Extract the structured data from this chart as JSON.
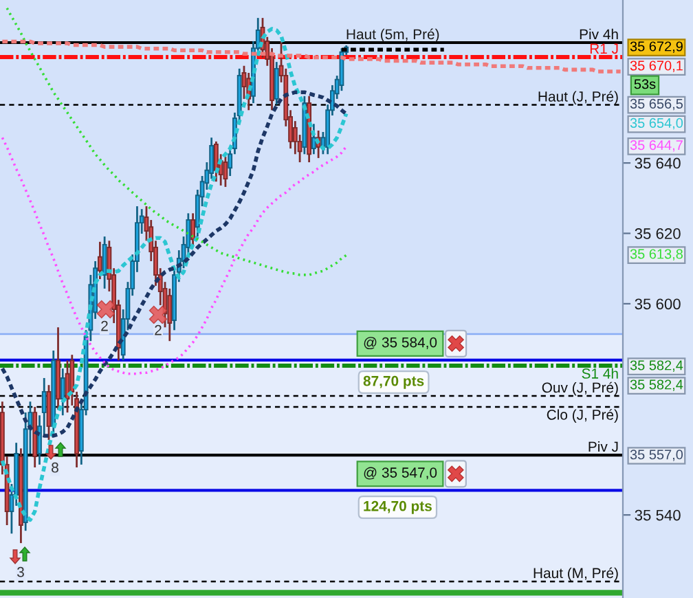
{
  "chart_data": {
    "type": "candlestick",
    "categories": [
      null,
      null,
      null,
      null,
      null,
      null,
      null,
      null,
      null,
      null,
      null,
      null,
      null,
      null,
      null,
      null,
      null,
      null,
      null,
      null,
      null,
      null,
      null,
      null,
      null,
      null,
      null,
      null,
      null,
      null,
      null,
      null,
      null,
      null,
      null,
      null,
      null,
      null,
      null,
      null,
      null,
      null,
      null,
      null,
      null,
      null,
      null,
      null,
      null,
      null,
      null,
      null,
      null,
      null,
      null,
      null,
      null,
      null,
      null,
      null,
      null,
      null,
      null,
      null,
      null,
      null,
      null,
      null,
      null,
      null,
      null,
      null,
      null,
      null,
      null,
      null,
      null,
      null,
      null,
      null,
      null,
      null,
      null,
      null,
      null,
      null,
      null,
      null,
      null,
      null,
      null,
      null,
      null,
      null,
      null,
      null,
      null,
      null,
      null,
      null,
      null,
      null,
      null,
      null,
      null,
      null,
      null,
      null,
      null,
      null,
      null,
      null,
      null,
      null,
      null,
      null,
      null,
      null,
      null,
      null,
      null,
      null,
      null,
      null,
      null,
      null,
      null,
      null,
      null,
      null,
      null,
      null,
      null,
      null
    ],
    "ohlc": [
      [
        35569.1,
        35572.2,
        35551.5,
        35554.3
      ],
      [
        35554.3,
        35556.6,
        35537.1,
        35541.0
      ],
      [
        35541.0,
        35548.8,
        35534.7,
        35545.7
      ],
      [
        35545.7,
        35560.5,
        35542.6,
        35557.4
      ],
      [
        35556.6,
        35558.9,
        35532.0,
        35537.1
      ],
      [
        35537.9,
        35569.1,
        35535.5,
        35564.4
      ],
      [
        35564.4,
        35572.2,
        35557.4,
        35569.1
      ],
      [
        35569.1,
        35570.7,
        35553.5,
        35556.6
      ],
      [
        35557.4,
        35568.3,
        35554.3,
        35565.2
      ],
      [
        35569.1,
        35578.9,
        35562.1,
        35575.0
      ],
      [
        35575.0,
        35576.9,
        35561.3,
        35565.2
      ],
      [
        35565.2,
        35586.7,
        35562.1,
        35583.9
      ],
      [
        35583.9,
        35593.3,
        35569.9,
        35573.0
      ],
      [
        35573.0,
        35581.6,
        35568.3,
        35578.9
      ],
      [
        35580.1,
        35583.9,
        35569.1,
        35573.0
      ],
      [
        35583.9,
        35585.5,
        35571.1,
        35575.0
      ],
      [
        35573.0,
        35575.0,
        35553.5,
        35557.4
      ],
      [
        35558.2,
        35573.0,
        35554.3,
        35569.9
      ],
      [
        35569.9,
        35592.5,
        35568.3,
        35590.6
      ],
      [
        35592.5,
        35608.2,
        35589.4,
        35605.4
      ],
      [
        35597.6,
        35612.1,
        35595.7,
        35610.1
      ],
      [
        35613.3,
        35617.6,
        35607.0,
        35609.4
      ],
      [
        35608.2,
        35619.1,
        35604.3,
        35616.8
      ],
      [
        35616.0,
        35617.9,
        35603.5,
        35607.0
      ],
      [
        35608.2,
        35610.1,
        35594.5,
        35598.4
      ],
      [
        35599.6,
        35601.1,
        35583.9,
        35587.5
      ],
      [
        35585.5,
        35598.4,
        35583.9,
        35595.7
      ],
      [
        35595.7,
        35606.2,
        35592.5,
        35604.3
      ],
      [
        35604.3,
        35614.0,
        35602.3,
        35612.1
      ],
      [
        35612.1,
        35627.7,
        35609.0,
        35623.0
      ],
      [
        35623.0,
        35626.9,
        35619.9,
        35624.9
      ],
      [
        35624.6,
        35627.7,
        35617.9,
        35620.7
      ],
      [
        35621.8,
        35623.8,
        35612.1,
        35614.8
      ],
      [
        35616.0,
        35617.9,
        35605.1,
        35608.2
      ],
      [
        35608.2,
        35610.1,
        35599.6,
        35603.5
      ],
      [
        35604.3,
        35606.2,
        35593.3,
        35597.2
      ],
      [
        35602.3,
        35604.3,
        35589.4,
        35594.5
      ],
      [
        35595.3,
        35610.1,
        35592.5,
        35608.2
      ],
      [
        35609.0,
        35615.2,
        35606.2,
        35612.9
      ],
      [
        35612.1,
        35619.1,
        35610.1,
        35616.8
      ],
      [
        35616.0,
        35625.7,
        35614.0,
        35623.8
      ],
      [
        35623.8,
        35625.7,
        35616.0,
        35618.3
      ],
      [
        35621.8,
        35632.4,
        35619.1,
        35630.8
      ],
      [
        35630.4,
        35636.3,
        35627.7,
        35634.7
      ],
      [
        35634.3,
        35640.2,
        35632.4,
        35637.9
      ],
      [
        35637.1,
        35647.2,
        35635.5,
        35644.9
      ],
      [
        35645.3,
        35646.1,
        35634.7,
        35637.9
      ],
      [
        35640.6,
        35642.5,
        35633.6,
        35636.7
      ],
      [
        35640.2,
        35641.8,
        35633.2,
        35635.5
      ],
      [
        35638.6,
        35644.1,
        35636.3,
        35642.5
      ],
      [
        35644.1,
        35654.3,
        35642.5,
        35652.7
      ],
      [
        35653.5,
        35666.8,
        35651.1,
        35664.8
      ],
      [
        35665.6,
        35667.6,
        35658.2,
        35661.7
      ],
      [
        35664.0,
        35665.6,
        35655.0,
        35658.2
      ],
      [
        35659.0,
        35674.6,
        35657.0,
        35672.6
      ],
      [
        35672.6,
        35681.2,
        35670.7,
        35677.7
      ],
      [
        35678.5,
        35681.2,
        35669.9,
        35672.2
      ],
      [
        35674.6,
        35675.8,
        35667.6,
        35669.5
      ],
      [
        35670.7,
        35672.6,
        35655.0,
        35657.8
      ],
      [
        35658.2,
        35668.7,
        35656.6,
        35666.8
      ],
      [
        35667.6,
        35674.6,
        35662.9,
        35664.8
      ],
      [
        35664.8,
        35666.8,
        35650.4,
        35652.3
      ],
      [
        35653.1,
        35655.0,
        35644.1,
        35646.1
      ],
      [
        35650.0,
        35651.9,
        35642.5,
        35646.1
      ],
      [
        35646.1,
        35648.0,
        35640.2,
        35643.3
      ],
      [
        35644.5,
        35659.0,
        35642.5,
        35657.0
      ],
      [
        35657.0,
        35659.0,
        35640.2,
        35642.5
      ],
      [
        35644.1,
        35651.1,
        35642.5,
        35647.2
      ],
      [
        35647.2,
        35649.2,
        35641.4,
        35644.5
      ],
      [
        35644.5,
        35648.8,
        35642.5,
        35647.2
      ],
      [
        35644.5,
        35656.6,
        35642.5,
        35655.0
      ],
      [
        35655.0,
        35662.1,
        35653.5,
        35660.5
      ],
      [
        35659.7,
        35664.8,
        35658.2,
        35663.7
      ],
      [
        35662.1,
        35672.6,
        35660.5,
        35671.5
      ],
      [
        35671.5,
        35673.4,
        35670.7,
        35672.9
      ],
      null,
      null,
      null,
      null,
      null,
      null,
      null,
      null,
      null,
      null,
      null,
      null,
      null,
      null,
      null,
      null,
      null,
      null,
      null,
      null,
      null,
      null,
      null,
      null,
      null,
      null,
      null,
      null,
      null,
      null,
      null,
      null,
      null,
      null,
      null,
      null,
      null,
      null,
      null,
      null,
      null,
      null,
      null,
      null,
      null,
      null,
      null,
      null,
      null,
      null,
      null,
      null,
      null,
      null,
      null,
      null,
      null,
      null,
      null
    ],
    "colors": [
      "#d24848",
      "#d24848",
      "#1ea5e0",
      "#1ea5e0",
      "#d24848",
      "#1ea5e0",
      "#1ea5e0",
      "#d24848",
      "#1ea5e0",
      "#1ea5e0",
      "#d24848",
      "#1ea5e0",
      "#d24848",
      "#1ea5e0",
      "#d24848",
      "#d24848",
      "#d24848",
      "#1ea5e0",
      "#1ea5e0",
      "#1ea5e0",
      "#1ea5e0",
      "#d24848",
      "#1ea5e0",
      "#d24848",
      "#d24848",
      "#d24848",
      "#1ea5e0",
      "#1ea5e0",
      "#1ea5e0",
      "#1ea5e0",
      "#1ea5e0",
      "#d24848",
      "#d24848",
      "#d24848",
      "#d24848",
      "#d24848",
      "#d24848",
      "#1ea5e0",
      "#1ea5e0",
      "#1ea5e0",
      "#1ea5e0",
      "#d24848",
      "#1ea5e0",
      "#1ea5e0",
      "#1ea5e0",
      "#1ea5e0",
      "#d24848",
      "#d24848",
      "#d24848",
      "#1ea5e0",
      "#1ea5e0",
      "#1ea5e0",
      "#d24848",
      "#d24848",
      "#1ea5e0",
      "#1ea5e0",
      "#d24848",
      "#d24848",
      "#d24848",
      "#1ea5e0",
      "#d24848",
      "#d24848",
      "#d24848",
      "#d24848",
      "#d24848",
      "#1ea5e0",
      "#d24848",
      "#1ea5e0",
      "#d24848",
      "#1ea5e0",
      "#1ea5e0",
      "#1ea5e0",
      "#1ea5e0",
      "#1ea5e0",
      "#1ea5e0",
      null,
      null,
      null,
      null,
      null,
      null,
      null,
      null,
      null,
      null,
      null,
      null,
      null,
      null,
      null,
      null,
      null,
      null,
      null,
      null,
      null,
      null,
      null,
      null,
      null,
      null,
      null,
      null,
      null,
      null,
      null,
      null,
      null,
      null,
      null,
      null,
      null,
      null,
      null,
      null,
      null,
      null,
      null,
      null,
      null,
      null,
      null,
      null,
      null,
      null,
      null,
      null,
      null,
      null,
      null,
      null,
      null,
      null,
      null
    ],
    "series": [
      {
        "type": "line",
        "color": "#2cc6d2",
        "line_style": "dashed",
        "values": [
          35555.4,
          35551.5,
          35547.6,
          35544.9,
          35541.8,
          35539.8,
          35538.6,
          35541.0,
          35547.6,
          35553.5,
          35559.3,
          35564.4,
          35569.1,
          35572.2,
          35573.8,
          35575.0,
          35576.9,
          35582.8,
          35591.4,
          35599.6,
          35605.8,
          35608.2,
          35609.3,
          35609.3,
          35609.0,
          35609.3,
          35610.9,
          35612.1,
          35613.3,
          35614.4,
          35616.0,
          35617.6,
          35618.3,
          35618.7,
          35618.7,
          35617.6,
          35613.6,
          35609.7,
          35607.4,
          35609.0,
          35613.6,
          35616.8,
          35619.1,
          35624.6,
          35629.7,
          35634.0,
          35637.1,
          35641.0,
          35642.5,
          35644.1,
          35647.2,
          35651.9,
          35656.6,
          35659.7,
          35664.8,
          35670.7,
          35675.4,
          35677.3,
          35678.1,
          35677.7,
          35676.1,
          35671.5,
          35666.0,
          35661.7,
          35659.0,
          35655.8,
          35651.9,
          35648.0,
          35645.7,
          35644.1,
          35644.1,
          35645.3,
          35647.2,
          35650.4,
          35654.0,
          null,
          null,
          null,
          null,
          null,
          null,
          null,
          null,
          null,
          null,
          null,
          null,
          null,
          null,
          null,
          null,
          null,
          null,
          null,
          null,
          null,
          null,
          null,
          null,
          null,
          null,
          null,
          null,
          null,
          null,
          null,
          null,
          null,
          null,
          null,
          null,
          null,
          null,
          null,
          null,
          null,
          null,
          null,
          null,
          null,
          null,
          null,
          null,
          null,
          null,
          null,
          null,
          null,
          null,
          null,
          null,
          null,
          null,
          null
        ]
      },
      {
        "type": "line",
        "color": "#1d3766",
        "line_style": "dashed",
        "values": [
          35581.6,
          35579.3,
          35576.1,
          35573.0,
          35569.9,
          35566.8,
          35564.8,
          35563.6,
          35562.9,
          35562.5,
          35562.5,
          35562.5,
          35562.9,
          35563.6,
          35564.8,
          35567.2,
          35569.9,
          35572.2,
          35574.6,
          35576.5,
          35578.5,
          35580.8,
          35582.8,
          35584.3,
          35586.3,
          35588.6,
          35590.2,
          35592.2,
          35594.9,
          35597.2,
          35599.6,
          35601.9,
          35604.3,
          35606.2,
          35607.8,
          35609.0,
          35609.7,
          35610.1,
          35610.9,
          35611.7,
          35612.9,
          35614.4,
          35616.0,
          35617.2,
          35618.3,
          35619.5,
          35620.7,
          35621.5,
          35622.6,
          35624.2,
          35626.5,
          35628.9,
          35631.6,
          35634.7,
          35637.9,
          35643.3,
          35647.2,
          35650.4,
          35653.9,
          35656.2,
          35658.2,
          35659.3,
          35659.7,
          35660.1,
          35660.1,
          35660.1,
          35659.7,
          35659.3,
          35659.0,
          35658.6,
          35657.8,
          35657.0,
          35656.2,
          35655.0,
          35653.9,
          null,
          null,
          null,
          null,
          null,
          null,
          null,
          null,
          null,
          null,
          null,
          null,
          null,
          null,
          null,
          null,
          null,
          null,
          null,
          null,
          null,
          null,
          null,
          null,
          null,
          null,
          null,
          null,
          null,
          null,
          null,
          null,
          null,
          null,
          null,
          null,
          null,
          null,
          null,
          null,
          null,
          null,
          null,
          null,
          null,
          null,
          null,
          null,
          null,
          null,
          null,
          null,
          null,
          null,
          null,
          null,
          null,
          null,
          null
        ]
      },
      {
        "type": "line",
        "color": "#ff4dff",
        "line_style": "dotted",
        "values": [
          35647.2,
          35644.5,
          35641.4,
          35638.3,
          35635.5,
          35632.4,
          35629.3,
          35626.1,
          35622.6,
          35619.5,
          35616.0,
          35612.9,
          35609.3,
          35605.8,
          35602.7,
          35599.2,
          35596.1,
          35593.3,
          35590.6,
          35588.3,
          35586.3,
          35584.7,
          35583.2,
          35582.0,
          35581.2,
          35580.8,
          35580.4,
          35580.1,
          35580.1,
          35580.1,
          35580.4,
          35580.4,
          35580.8,
          35581.2,
          35581.6,
          35582.4,
          35583.2,
          35584.0,
          35584.7,
          35585.9,
          35587.5,
          35589.0,
          35591.0,
          35593.3,
          35595.7,
          35598.8,
          35601.1,
          35604.3,
          35607.0,
          35609.7,
          35612.9,
          35615.2,
          35617.6,
          35619.9,
          35621.5,
          35623.8,
          35625.8,
          35627.3,
          35628.5,
          35629.7,
          35630.8,
          35631.6,
          35632.8,
          35634.0,
          35634.7,
          35635.9,
          35636.7,
          35637.5,
          35638.6,
          35639.4,
          35640.2,
          35641.0,
          35641.8,
          35642.9,
          35644.7,
          null,
          null,
          null,
          null,
          null,
          null,
          null,
          null,
          null,
          null,
          null,
          null,
          null,
          null,
          null,
          null,
          null,
          null,
          null,
          null,
          null,
          null,
          null,
          null,
          null,
          null,
          null,
          null,
          null,
          null,
          null,
          null,
          null,
          null,
          null,
          null,
          null,
          null,
          null,
          null,
          null,
          null,
          null,
          null,
          null,
          null,
          null,
          null,
          null,
          null,
          null,
          null,
          null,
          null,
          null,
          null,
          null,
          null,
          null
        ]
      },
      {
        "type": "line",
        "color": "#35dd35",
        "line_style": "dotted",
        "values": [
          null,
          35684.0,
          35681.6,
          35679.3,
          35676.9,
          35674.2,
          35671.8,
          35669.5,
          35667.2,
          35664.8,
          35662.5,
          35660.1,
          35658.2,
          35656.2,
          35654.3,
          35652.3,
          35650.4,
          35648.4,
          35646.5,
          35644.5,
          35642.5,
          35641.0,
          35639.4,
          35637.9,
          35636.7,
          35635.1,
          35634.0,
          35632.8,
          35631.6,
          35630.4,
          35629.3,
          35628.1,
          35626.9,
          35625.8,
          35625.0,
          35623.8,
          35623.0,
          35622.2,
          35621.5,
          35620.7,
          35619.9,
          35619.1,
          35618.3,
          35617.6,
          35616.8,
          35616.0,
          35615.2,
          35614.4,
          35614.0,
          35613.6,
          35613.3,
          35612.9,
          35612.5,
          35612.1,
          35611.7,
          35611.3,
          35610.9,
          35610.5,
          35610.1,
          35609.7,
          35609.3,
          35609.0,
          35608.6,
          35608.6,
          35608.2,
          35608.2,
          35608.2,
          35608.6,
          35609.0,
          35609.3,
          35610.1,
          35610.9,
          35611.7,
          35612.9,
          35613.8,
          null,
          null,
          null,
          null,
          null,
          null,
          null,
          null,
          null,
          null,
          null,
          null,
          null,
          null,
          null,
          null,
          null,
          null,
          null,
          null,
          null,
          null,
          null,
          null,
          null,
          null,
          null,
          null,
          null,
          null,
          null,
          null,
          null,
          null,
          null,
          null,
          null,
          null,
          null,
          null,
          null,
          null,
          null,
          null,
          null,
          null,
          null,
          null,
          null,
          null,
          null,
          null,
          null,
          null,
          null,
          null,
          null,
          null,
          null
        ]
      },
      {
        "type": "line",
        "color": "#f07a7a",
        "line_style": "dashed",
        "values": [
          35674.5,
          35674.5,
          35674.5,
          35674.5,
          35674.5,
          35674.5,
          35674.5,
          35674.0,
          35674.0,
          35674.0,
          35674.0,
          35674.0,
          35674.0,
          35674.0,
          35674.0,
          35673.5,
          35673.5,
          35673.5,
          35673.5,
          35673.5,
          35673.5,
          35673.5,
          35673.0,
          35673.0,
          35673.0,
          35673.0,
          35673.0,
          35673.0,
          35673.0,
          35673.0,
          35672.5,
          35672.5,
          35672.5,
          35672.5,
          35672.5,
          35672.5,
          35672.5,
          35672.0,
          35672.0,
          35672.0,
          35672.0,
          35672.0,
          35672.0,
          35672.0,
          35671.5,
          35671.5,
          35671.5,
          35671.5,
          35671.5,
          35671.5,
          35671.5,
          35671.5,
          35671.0,
          35671.0,
          35671.0,
          35671.0,
          35671.0,
          35671.0,
          35671.0,
          35670.5,
          35670.5,
          35670.5,
          35670.5,
          35670.5,
          35670.5,
          35670.5,
          35670.0,
          35670.0,
          35670.0,
          35670.0,
          35670.0,
          35670.0,
          35670.0,
          35670.0,
          35669.5,
          35669.5,
          35669.5,
          35669.5,
          35669.5,
          35669.5,
          35669.5,
          35669.5,
          35669.0,
          35669.0,
          35669.0,
          35669.0,
          35669.0,
          35669.0,
          35669.0,
          35669.0,
          35668.5,
          35668.5,
          35668.5,
          35668.5,
          35668.5,
          35668.5,
          35668.5,
          35668.5,
          35668.0,
          35668.0,
          35668.0,
          35668.0,
          35668.0,
          35668.0,
          35668.0,
          35667.5,
          35667.5,
          35667.5,
          35667.5,
          35667.5,
          35667.5,
          35667.5,
          35667.5,
          35667.0,
          35667.0,
          35667.0,
          35667.0,
          35667.0,
          35667.0,
          35667.0,
          35667.0,
          35666.5,
          35666.5,
          35666.5,
          35666.5,
          35666.5,
          35666.5,
          35666.5,
          35666.0,
          35666.0,
          35666.0,
          35666.0,
          35666.0,
          35666.0
        ]
      },
      {
        "type": "line",
        "name": "Haut (5m, Pré)",
        "color": "#000000",
        "line_style": "dashed",
        "values": [
          null,
          null,
          null,
          null,
          null,
          null,
          null,
          null,
          null,
          null,
          null,
          null,
          null,
          null,
          null,
          null,
          null,
          null,
          null,
          null,
          null,
          null,
          null,
          null,
          null,
          null,
          null,
          null,
          null,
          null,
          null,
          null,
          null,
          null,
          null,
          null,
          null,
          null,
          null,
          null,
          null,
          null,
          null,
          null,
          null,
          null,
          null,
          null,
          null,
          null,
          null,
          null,
          null,
          null,
          null,
          null,
          null,
          null,
          null,
          null,
          null,
          null,
          null,
          null,
          null,
          null,
          null,
          null,
          null,
          null,
          null,
          null,
          null,
          35672.2,
          35672.2,
          35672.2,
          35672.2,
          35672.2,
          35672.2,
          35672.2,
          35672.2,
          35672.2,
          35672.2,
          35672.2,
          35672.2,
          35672.2,
          35672.2,
          35672.2,
          35672.2,
          35672.2,
          35672.2,
          35672.2,
          35672.2,
          35672.2,
          35672.2,
          35672.2,
          null,
          null,
          null,
          null,
          null,
          null,
          null,
          null,
          null,
          null,
          null,
          null,
          null,
          null,
          null,
          null,
          null,
          null,
          null,
          null,
          null,
          null,
          null,
          null,
          null,
          null,
          null,
          null,
          null,
          null,
          null,
          null,
          null,
          null,
          null,
          null,
          null,
          null
        ]
      }
    ],
    "ylim": [
      35516.4,
      35686.3
    ],
    "yticks": [
      {
        "value": 35540,
        "label": "35 540"
      },
      {
        "value": 35600,
        "label": "35 600"
      },
      {
        "value": 35620,
        "label": "35 620"
      },
      {
        "value": 35640,
        "label": "35 640"
      }
    ],
    "tick_labels": "y",
    "bands": [
      {
        "axis": "y",
        "from": 35516.4,
        "to": 35591.4,
        "color": "#e5edfc"
      }
    ],
    "ref_lines": [
      {
        "axis": "y",
        "value": 35674.2,
        "label": "Piv 4h",
        "color": "#000000",
        "line_style": "solid"
      },
      {
        "axis": "y",
        "value": 35670.1,
        "label": "R1 J",
        "color": "#ff1010",
        "line_style": "dashed"
      },
      {
        "axis": "y",
        "value": 35656.5,
        "label": "Haut (J, Pré)",
        "color": "#000000",
        "line_style": "dashed"
      },
      {
        "axis": "y",
        "value": 35591.4,
        "color": "#88adf5",
        "line_style": "solid"
      },
      {
        "axis": "y",
        "value": 35584.0,
        "label": "@ 35 584,0",
        "color": "#0a0ae6",
        "line_style": "solid"
      },
      {
        "axis": "y",
        "value": 35582.4,
        "label": "S1 4h",
        "color": "#148c14",
        "line_style": "dashed"
      },
      {
        "axis": "y",
        "value": 35573.8,
        "label": "Ouv (J, Pré)",
        "color": "#000000",
        "line_style": "dashed"
      },
      {
        "axis": "y",
        "value": 35570.7,
        "label": "Clo (J, Pré)",
        "color": "#000000",
        "line_style": "dashed"
      },
      {
        "axis": "y",
        "value": 35557.0,
        "label": "Piv J",
        "color": "#000000",
        "line_style": "solid"
      },
      {
        "axis": "y",
        "value": 35547.0,
        "label": "@ 35 547,0",
        "color": "#0a0ae6",
        "line_style": "solid"
      },
      {
        "axis": "y",
        "value": 35521.1,
        "label": "Haut (M, Pré)",
        "color": "#000000",
        "line_style": "dashed"
      },
      {
        "axis": "y",
        "value": 35517.9,
        "color": "#30a830",
        "line_style": "solid"
      }
    ],
    "annotations": [
      "35 672,9",
      "35 670,1",
      "35 656,5",
      "35 654,0",
      "35 644,7",
      "35 613,8",
      "35 582,4",
      "35 582,4",
      "35 557,0",
      "53s",
      "87,70 pts",
      "124,70 pts",
      "2",
      "2",
      "8",
      "3"
    ]
  }
}
